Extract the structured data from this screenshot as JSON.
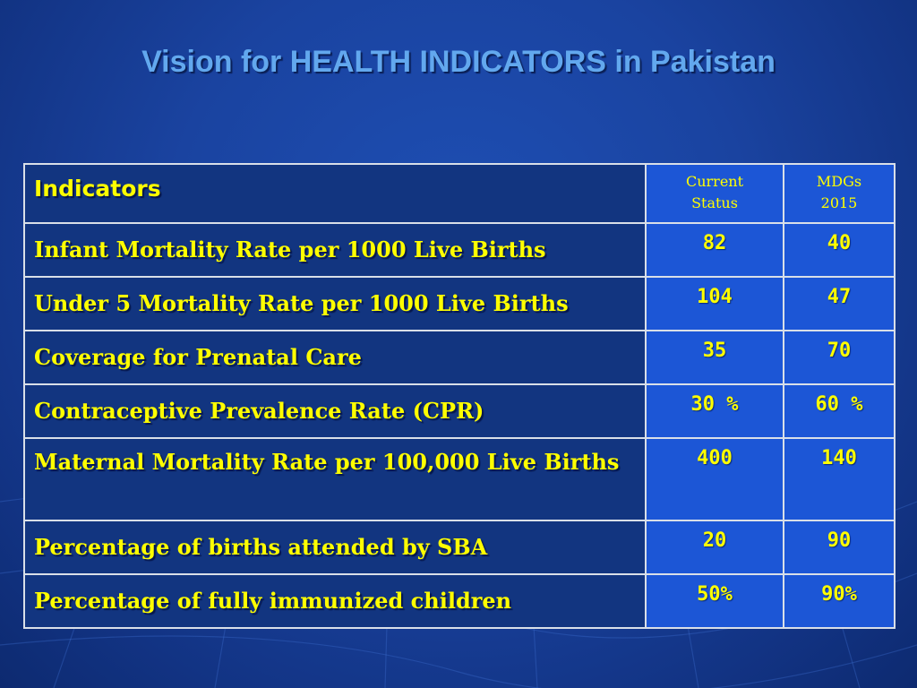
{
  "title": "Vision for HEALTH INDICATORS in Pakistan",
  "table": {
    "headers": {
      "indicators": "Indicators",
      "current_line1": "Current",
      "current_line2": "Status",
      "mdgs_line1": "MDGs",
      "mdgs_line2": "2015"
    },
    "rows": [
      {
        "indicator": "Infant Mortality Rate per 1000 Live Births",
        "current": "82",
        "mdgs": "40"
      },
      {
        "indicator": "Under 5 Mortality Rate per 1000 Live Births",
        "current": "104",
        "mdgs": "47"
      },
      {
        "indicator": "Coverage for Prenatal Care",
        "current": "35",
        "mdgs": "70"
      },
      {
        "indicator": "Contraceptive Prevalence Rate (CPR)",
        "current": "30 %",
        "mdgs": "60 %"
      },
      {
        "indicator": "Maternal Mortality Rate per 100,000 Live Births",
        "current": "400",
        "mdgs": "140"
      },
      {
        "indicator": "Percentage of births attended by SBA",
        "current": "20",
        "mdgs": "90"
      },
      {
        "indicator": "Percentage of fully immunized children",
        "current": "50%",
        "mdgs": "90%"
      }
    ]
  },
  "colors": {
    "title": "#62a8ee",
    "text_yellow": "#ffff00",
    "indicator_cell": "#123580",
    "value_cell": "#1c56d6",
    "border": "#d9dfe8"
  }
}
